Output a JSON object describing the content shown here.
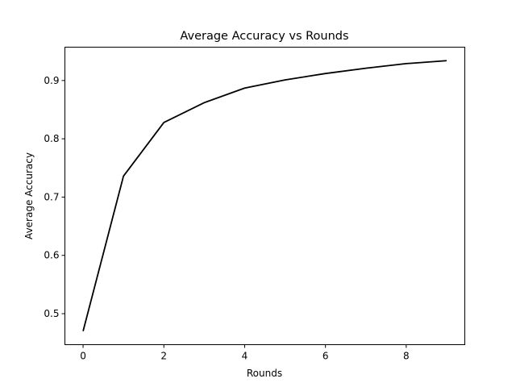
{
  "chart_data": {
    "type": "line",
    "title": "Average Accuracy vs Rounds",
    "xlabel": "Rounds",
    "ylabel": "Average Accuracy",
    "x": [
      0,
      1,
      2,
      3,
      4,
      5,
      6,
      7,
      8,
      9
    ],
    "series": [
      {
        "values": [
          0.47,
          0.736,
          0.828,
          0.862,
          0.887,
          0.901,
          0.912,
          0.921,
          0.929,
          0.934
        ],
        "color": "#000000"
      }
    ],
    "xlim": [
      -0.45,
      9.45
    ],
    "ylim": [
      0.4468,
      0.9572
    ],
    "xticks": [
      0,
      2,
      4,
      6,
      8
    ],
    "xtick_labels": [
      "0",
      "2",
      "4",
      "6",
      "8"
    ],
    "yticks": [
      0.5,
      0.6,
      0.7,
      0.8,
      0.9
    ],
    "ytick_labels": [
      "0.5",
      "0.6",
      "0.7",
      "0.8",
      "0.9"
    ],
    "grid": false,
    "legend": "none"
  }
}
